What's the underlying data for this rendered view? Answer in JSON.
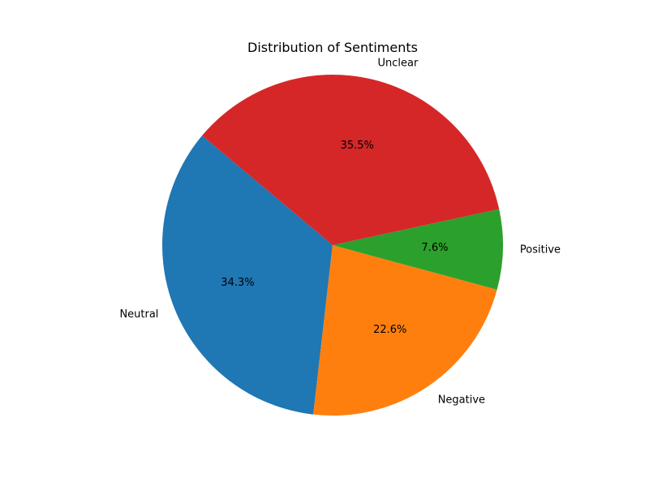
{
  "chart_data": {
    "type": "pie",
    "title": "Distribution of Sentiments",
    "start_angle_deg": 140,
    "direction": "counterclockwise",
    "slices": [
      {
        "label": "Neutral",
        "value": 34.3,
        "pct_label": "34.3%",
        "color": "#1f77b4"
      },
      {
        "label": "Negative",
        "value": 22.6,
        "pct_label": "22.6%",
        "color": "#ff7f0e"
      },
      {
        "label": "Positive",
        "value": 7.6,
        "pct_label": "7.6%",
        "color": "#2ca02c"
      },
      {
        "label": "Unclear",
        "value": 35.5,
        "pct_label": "35.5%",
        "color": "#d62728"
      }
    ]
  }
}
